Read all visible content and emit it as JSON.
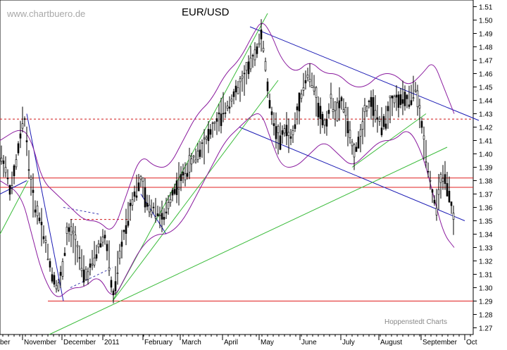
{
  "header": {
    "watermark": "www.chartbuero.de",
    "title": "EUR/USD",
    "credit": "Hoppenstedt Charts"
  },
  "chart_data": {
    "type": "candlestick",
    "title": "EUR/USD",
    "xlabel": "",
    "ylabel": "",
    "ylim": [
      1.265,
      1.515
    ],
    "y_ticks": [
      1.27,
      1.28,
      1.29,
      1.3,
      1.31,
      1.32,
      1.33,
      1.34,
      1.35,
      1.36,
      1.37,
      1.38,
      1.39,
      1.4,
      1.41,
      1.42,
      1.43,
      1.44,
      1.45,
      1.46,
      1.47,
      1.48,
      1.49,
      1.5,
      1.51
    ],
    "x_tick_labels": [
      "ber",
      "November",
      "December",
      "2011",
      "February",
      "March",
      "April",
      "May",
      "June",
      "July",
      "August",
      "September",
      "Oct"
    ],
    "grid": false,
    "legend": "none",
    "colors": {
      "price": "#000000",
      "bollinger": "#8a1a9e",
      "trend_blue": "#1a1ab4",
      "trend_green": "#3cbc3c",
      "support_red": "#e02020",
      "dashed_red": "#d01818",
      "dashed_blue": "#3a3ab0"
    },
    "horizontal_levels": [
      {
        "value": 1.426,
        "style": "dashed",
        "color": "#d01818"
      },
      {
        "value": 1.382,
        "style": "solid",
        "color": "#e02020"
      },
      {
        "value": 1.375,
        "style": "solid",
        "color": "#e02020"
      },
      {
        "value": 1.29,
        "style": "solid",
        "color": "#e02020"
      }
    ],
    "price_path": [
      [
        0,
        1.4
      ],
      [
        8,
        1.39
      ],
      [
        15,
        1.37
      ],
      [
        22,
        1.39
      ],
      [
        28,
        1.41
      ],
      [
        34,
        1.43
      ],
      [
        38,
        1.41
      ],
      [
        43,
        1.38
      ],
      [
        50,
        1.36
      ],
      [
        58,
        1.35
      ],
      [
        66,
        1.33
      ],
      [
        74,
        1.31
      ],
      [
        82,
        1.3
      ],
      [
        88,
        1.31
      ],
      [
        95,
        1.34
      ],
      [
        102,
        1.34
      ],
      [
        110,
        1.33
      ],
      [
        118,
        1.31
      ],
      [
        125,
        1.31
      ],
      [
        132,
        1.32
      ],
      [
        140,
        1.33
      ],
      [
        148,
        1.34
      ],
      [
        155,
        1.32
      ],
      [
        160,
        1.29
      ],
      [
        166,
        1.31
      ],
      [
        172,
        1.33
      ],
      [
        180,
        1.35
      ],
      [
        190,
        1.37
      ],
      [
        200,
        1.38
      ],
      [
        210,
        1.36
      ],
      [
        220,
        1.36
      ],
      [
        232,
        1.35
      ],
      [
        244,
        1.37
      ],
      [
        256,
        1.38
      ],
      [
        268,
        1.39
      ],
      [
        280,
        1.4
      ],
      [
        292,
        1.41
      ],
      [
        304,
        1.42
      ],
      [
        316,
        1.43
      ],
      [
        328,
        1.44
      ],
      [
        340,
        1.45
      ],
      [
        350,
        1.46
      ],
      [
        358,
        1.47
      ],
      [
        366,
        1.48
      ],
      [
        372,
        1.49
      ],
      [
        376,
        1.47
      ],
      [
        382,
        1.44
      ],
      [
        390,
        1.42
      ],
      [
        398,
        1.41
      ],
      [
        406,
        1.42
      ],
      [
        414,
        1.41
      ],
      [
        422,
        1.43
      ],
      [
        430,
        1.45
      ],
      [
        438,
        1.46
      ],
      [
        446,
        1.45
      ],
      [
        454,
        1.43
      ],
      [
        462,
        1.42
      ],
      [
        470,
        1.44
      ],
      [
        478,
        1.43
      ],
      [
        486,
        1.44
      ],
      [
        494,
        1.42
      ],
      [
        502,
        1.4
      ],
      [
        510,
        1.41
      ],
      [
        518,
        1.43
      ],
      [
        526,
        1.44
      ],
      [
        534,
        1.43
      ],
      [
        542,
        1.42
      ],
      [
        550,
        1.43
      ],
      [
        558,
        1.44
      ],
      [
        566,
        1.44
      ],
      [
        574,
        1.44
      ],
      [
        582,
        1.44
      ],
      [
        590,
        1.45
      ],
      [
        596,
        1.43
      ],
      [
        602,
        1.41
      ],
      [
        608,
        1.39
      ],
      [
        614,
        1.37
      ],
      [
        620,
        1.36
      ],
      [
        626,
        1.38
      ],
      [
        632,
        1.38
      ],
      [
        638,
        1.37
      ],
      [
        644,
        1.35
      ]
    ],
    "bollinger_upper": [
      [
        0,
        1.41
      ],
      [
        30,
        1.42
      ],
      [
        45,
        1.41
      ],
      [
        60,
        1.38
      ],
      [
        80,
        1.37
      ],
      [
        100,
        1.36
      ],
      [
        120,
        1.35
      ],
      [
        140,
        1.35
      ],
      [
        160,
        1.34
      ],
      [
        180,
        1.37
      ],
      [
        200,
        1.4
      ],
      [
        220,
        1.39
      ],
      [
        240,
        1.39
      ],
      [
        260,
        1.41
      ],
      [
        280,
        1.43
      ],
      [
        300,
        1.44
      ],
      [
        320,
        1.46
      ],
      [
        340,
        1.47
      ],
      [
        360,
        1.49
      ],
      [
        372,
        1.5
      ],
      [
        385,
        1.49
      ],
      [
        400,
        1.47
      ],
      [
        420,
        1.46
      ],
      [
        440,
        1.47
      ],
      [
        460,
        1.46
      ],
      [
        480,
        1.46
      ],
      [
        500,
        1.45
      ],
      [
        520,
        1.45
      ],
      [
        540,
        1.46
      ],
      [
        560,
        1.46
      ],
      [
        580,
        1.45
      ],
      [
        600,
        1.46
      ],
      [
        615,
        1.47
      ],
      [
        630,
        1.45
      ],
      [
        645,
        1.43
      ]
    ],
    "bollinger_lower": [
      [
        0,
        1.38
      ],
      [
        30,
        1.37
      ],
      [
        45,
        1.34
      ],
      [
        60,
        1.31
      ],
      [
        80,
        1.29
      ],
      [
        100,
        1.3
      ],
      [
        120,
        1.3
      ],
      [
        140,
        1.31
      ],
      [
        160,
        1.29
      ],
      [
        180,
        1.31
      ],
      [
        200,
        1.33
      ],
      [
        220,
        1.34
      ],
      [
        240,
        1.34
      ],
      [
        260,
        1.35
      ],
      [
        280,
        1.37
      ],
      [
        300,
        1.39
      ],
      [
        320,
        1.41
      ],
      [
        340,
        1.42
      ],
      [
        360,
        1.43
      ],
      [
        372,
        1.43
      ],
      [
        385,
        1.41
      ],
      [
        400,
        1.39
      ],
      [
        420,
        1.39
      ],
      [
        440,
        1.4
      ],
      [
        460,
        1.41
      ],
      [
        480,
        1.4
      ],
      [
        500,
        1.39
      ],
      [
        520,
        1.4
      ],
      [
        540,
        1.41
      ],
      [
        560,
        1.41
      ],
      [
        580,
        1.42
      ],
      [
        600,
        1.4
      ],
      [
        615,
        1.37
      ],
      [
        630,
        1.34
      ],
      [
        645,
        1.33
      ]
    ],
    "trendlines": [
      {
        "color": "#1a1ab4",
        "points": [
          [
            0,
            1.37
          ],
          [
            38,
            1.38
          ]
        ]
      },
      {
        "color": "#1a1ab4",
        "points": [
          [
            38,
            1.43
          ],
          [
            90,
            1.29
          ]
        ]
      },
      {
        "color": "#1a1ab4",
        "points": [
          [
            200,
            1.37
          ],
          [
            236,
            1.34
          ]
        ]
      },
      {
        "color": "#1a1ab4",
        "points": [
          [
            355,
            1.495
          ],
          [
            680,
            1.425
          ]
        ]
      },
      {
        "color": "#1a1ab4",
        "points": [
          [
            340,
            1.42
          ],
          [
            660,
            1.35
          ]
        ]
      },
      {
        "color": "#3cbc3c",
        "points": [
          [
            0,
            1.34
          ],
          [
            40,
            1.38
          ]
        ]
      },
      {
        "color": "#3cbc3c",
        "points": [
          [
            160,
            1.29
          ],
          [
            380,
            1.505
          ]
        ]
      },
      {
        "color": "#3cbc3c",
        "points": [
          [
            160,
            1.29
          ],
          [
            395,
            1.455
          ]
        ]
      },
      {
        "color": "#3cbc3c",
        "points": [
          [
            70,
            1.265
          ],
          [
            635,
            1.405
          ]
        ]
      },
      {
        "color": "#3cbc3c",
        "points": [
          [
            500,
            1.39
          ],
          [
            605,
            1.43
          ]
        ]
      }
    ],
    "dashed_lines": [
      {
        "color": "#d01818",
        "points": [
          [
            100,
            1.351
          ],
          [
            185,
            1.351
          ]
        ]
      },
      {
        "color": "#3a3ab0",
        "points": [
          [
            90,
            1.36
          ],
          [
            140,
            1.355
          ]
        ]
      },
      {
        "color": "#3a3ab0",
        "points": [
          [
            100,
            1.3
          ],
          [
            160,
            1.315
          ]
        ]
      }
    ]
  }
}
